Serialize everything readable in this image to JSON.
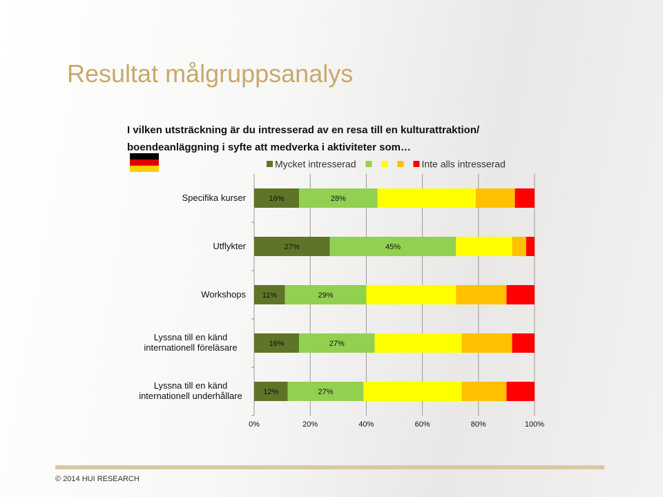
{
  "title": "Resultat målgruppsanalys",
  "footer": "© 2014 HUI RESEARCH",
  "chart_data": {
    "type": "stacked-bar-horizontal",
    "title": [
      "I vilken utsträckning är du intresserad av en resa till en kulturattraktion/",
      "boendeanläggning i syfte att medverka i aktiviteter som…"
    ],
    "categories": [
      "Specifika kurser",
      "Utflykter",
      "Workshops",
      "Lyssna till en känd internationell föreläsare",
      "Lyssna till en känd internationell underhållare"
    ],
    "series": [
      {
        "name": "Mycket intresserad",
        "color": "#5e7527",
        "values": [
          16,
          27,
          11,
          16,
          12
        ],
        "value_labels": [
          "16%",
          "27%",
          "11%",
          "16%",
          "12%"
        ]
      },
      {
        "name": null,
        "color": "#92d050",
        "values": [
          28,
          45,
          29,
          27,
          27
        ],
        "value_labels": [
          "28%",
          "45%",
          "29%",
          "27%",
          "27%"
        ]
      },
      {
        "name": null,
        "color": "#ffff00",
        "values": [
          35,
          20,
          32,
          31,
          35
        ]
      },
      {
        "name": null,
        "color": "#ffc000",
        "values": [
          14,
          5,
          18,
          18,
          16
        ]
      },
      {
        "name": "Inte alls intresserad",
        "color": "#ff0000",
        "values": [
          7,
          3,
          10,
          8,
          10
        ]
      }
    ],
    "xlim": [
      0,
      100
    ],
    "xticks": [
      {
        "value": 0,
        "label": "0%"
      },
      {
        "value": 20,
        "label": "20%"
      },
      {
        "value": 40,
        "label": "40%"
      },
      {
        "value": 60,
        "label": "60%"
      },
      {
        "value": 80,
        "label": "80%"
      },
      {
        "value": 100,
        "label": "100%"
      }
    ]
  }
}
